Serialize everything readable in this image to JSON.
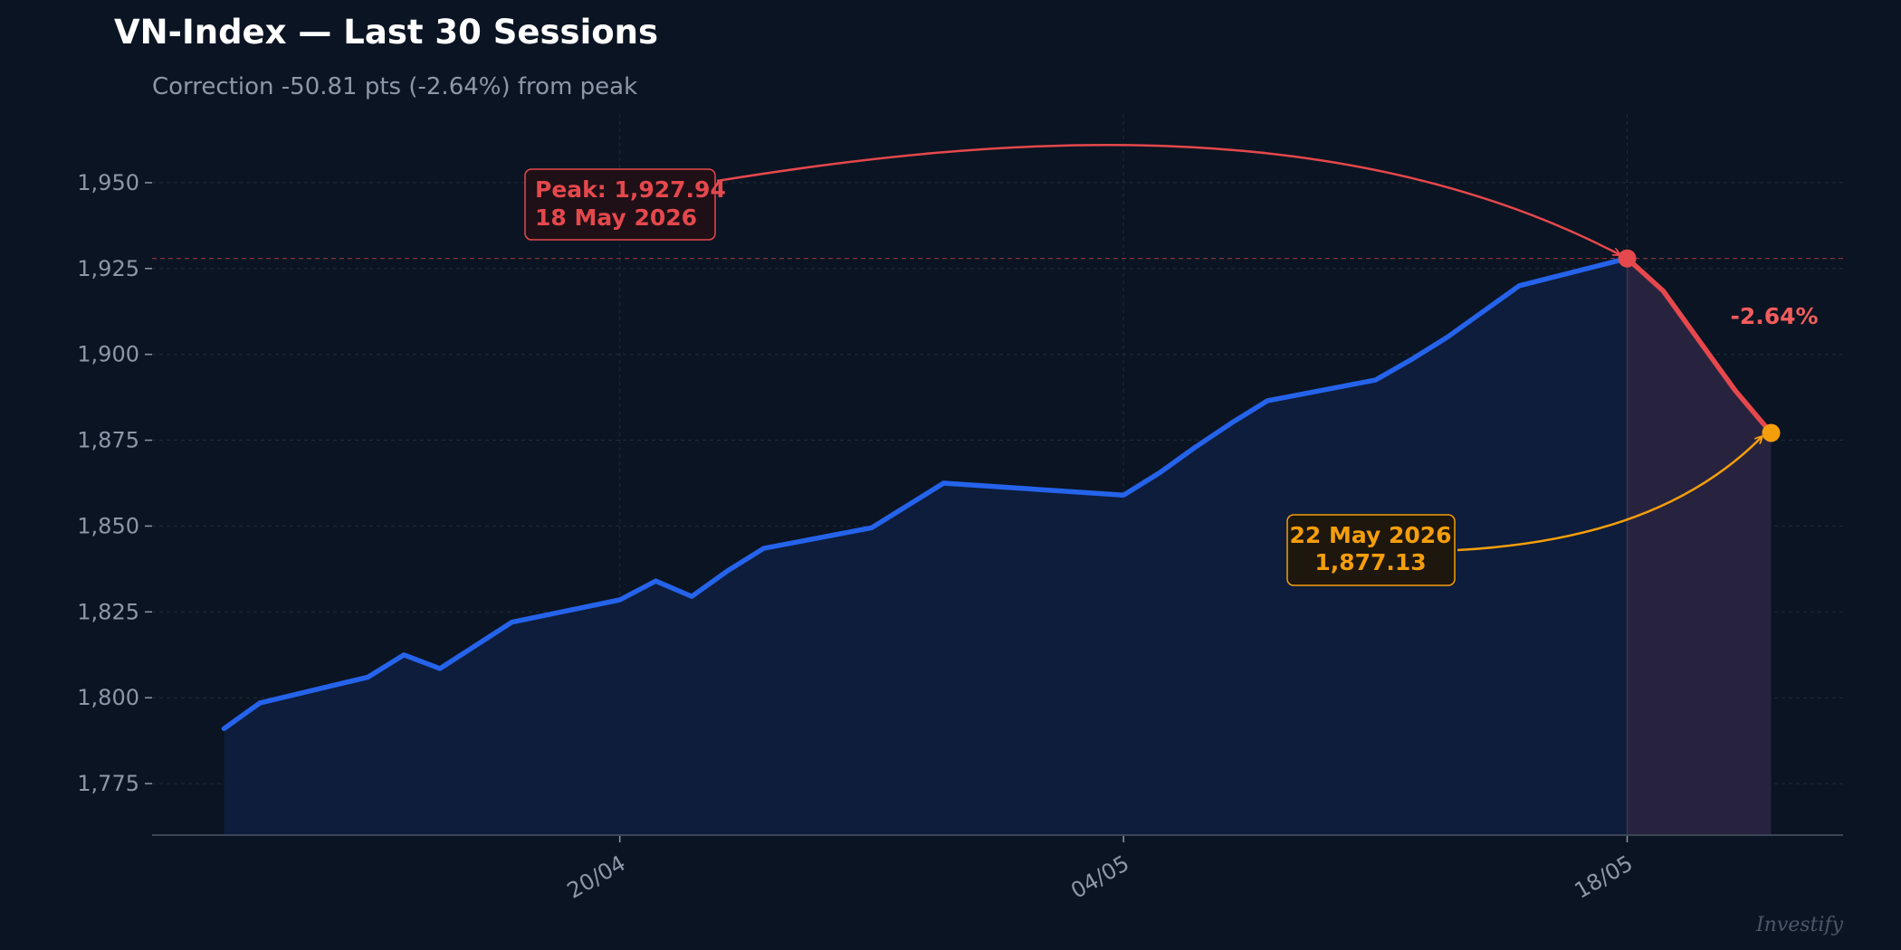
{
  "chart_data": {
    "type": "line",
    "title": "VN-Index — Last 30 Sessions",
    "subtitle": "Correction -50.81 pts (-2.64%) from peak",
    "xlabel": "",
    "ylabel": "",
    "ylim": [
      1760,
      1970
    ],
    "grid": true,
    "yticks": [
      1775,
      1800,
      1825,
      1850,
      1875,
      1900,
      1925,
      1950
    ],
    "ytick_labels": [
      "1,775",
      "1,800",
      "1,825",
      "1,850",
      "1,875",
      "1,900",
      "1,925",
      "1,950"
    ],
    "xticks": [
      {
        "date": "2026-04-20",
        "label": "20/04"
      },
      {
        "date": "2026-05-04",
        "label": "04/05"
      },
      {
        "date": "2026-05-18",
        "label": "18/05"
      }
    ],
    "xlim": [
      "2026-04-07",
      "2026-05-24"
    ],
    "series": [
      {
        "color": "#2563eb",
        "points": [
          {
            "date": "2026-04-09",
            "value": 1791.0
          },
          {
            "date": "2026-04-10",
            "value": 1798.5
          },
          {
            "date": "2026-04-13",
            "value": 1806.0
          },
          {
            "date": "2026-04-14",
            "value": 1812.5
          },
          {
            "date": "2026-04-15",
            "value": 1808.5
          },
          {
            "date": "2026-04-17",
            "value": 1822.0
          },
          {
            "date": "2026-04-20",
            "value": 1828.5
          },
          {
            "date": "2026-04-21",
            "value": 1834.0
          },
          {
            "date": "2026-04-22",
            "value": 1829.5
          },
          {
            "date": "2026-04-23",
            "value": 1837.0
          },
          {
            "date": "2026-04-24",
            "value": 1843.5
          },
          {
            "date": "2026-04-27",
            "value": 1849.5
          },
          {
            "date": "2026-04-29",
            "value": 1862.5
          },
          {
            "date": "2026-05-04",
            "value": 1859.0
          },
          {
            "date": "2026-05-05",
            "value": 1865.5
          },
          {
            "date": "2026-05-06",
            "value": 1873.0
          },
          {
            "date": "2026-05-07",
            "value": 1880.0
          },
          {
            "date": "2026-05-08",
            "value": 1886.5
          },
          {
            "date": "2026-05-11",
            "value": 1892.5
          },
          {
            "date": "2026-05-12",
            "value": 1898.5
          },
          {
            "date": "2026-05-13",
            "value": 1905.0
          },
          {
            "date": "2026-05-14",
            "value": 1912.5
          },
          {
            "date": "2026-05-15",
            "value": 1920.0
          },
          {
            "date": "2026-05-18",
            "value": 1927.94
          }
        ]
      },
      {
        "color": "#e5484d",
        "points": [
          {
            "date": "2026-05-18",
            "value": 1927.94
          },
          {
            "date": "2026-05-19",
            "value": 1918.5
          },
          {
            "date": "2026-05-20",
            "value": 1904.0
          },
          {
            "date": "2026-05-21",
            "value": 1889.5
          },
          {
            "date": "2026-05-22",
            "value": 1877.13
          }
        ]
      }
    ],
    "peak": {
      "date": "2026-05-18",
      "value": 1927.94
    },
    "latest": {
      "date": "2026-05-22",
      "value": 1877.13
    },
    "annotations": {
      "peak_line1": "Peak: 1,927.94",
      "peak_line2": "18 May 2026",
      "latest_line1": "22 May 2026",
      "latest_line2": "1,877.13",
      "pct_change": "-2.64%"
    },
    "colors": {
      "background": "#0b1422",
      "line": "#2563eb",
      "area": "#0e1d3d",
      "correction_line": "#e5484d",
      "correction_area": "#2a2542",
      "peak_marker": "#e5484d",
      "latest_marker": "#f59e0b",
      "grid": "#1f2c3b",
      "text_muted": "#8d97a8"
    },
    "watermark": "Investify"
  }
}
